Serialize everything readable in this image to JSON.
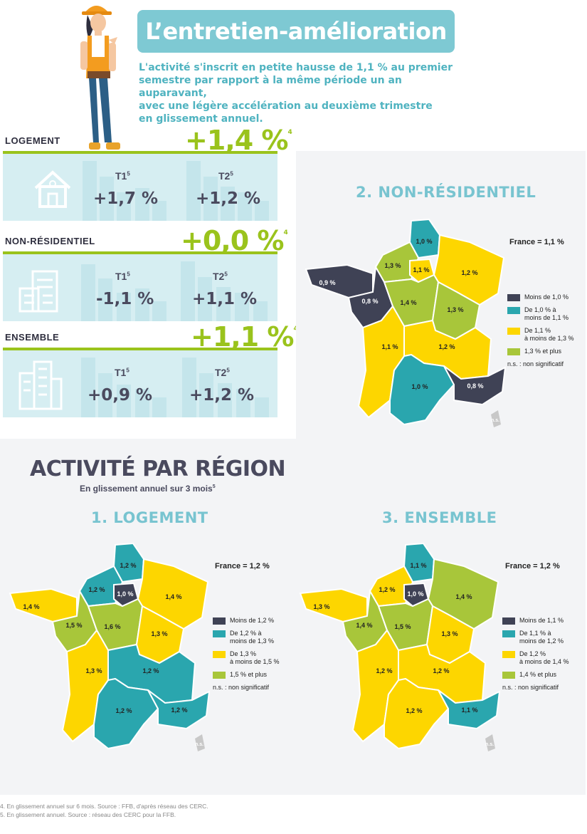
{
  "colors": {
    "teal": "#7ec9d3",
    "green": "#9ac31c",
    "dark": "#3f4255",
    "turquoise": "#2aa6ae",
    "yellow": "#fdd600",
    "lightgreen": "#a8c63a"
  },
  "header": {
    "title": "L’entretien-amélioration",
    "intro": [
      "L'activité s'inscrit en petite hausse de 1,1 % au premier",
      "semestre par rapport à la même période un an auparavant,",
      "avec une légère accélération au deuxième trimestre",
      "en glissement annuel."
    ]
  },
  "kpis": [
    {
      "label": "LOGEMENT",
      "value": "+1,4 %",
      "note": "4",
      "t1_label": "T1",
      "t1_note": "5",
      "t1": "+1,7 %",
      "t2_label": "T2",
      "t2_note": "5",
      "t2": "+1,2 %",
      "icon": "house-icon"
    },
    {
      "label": "NON-RÉSIDENTIEL",
      "value": "+0,0 %",
      "note": "4",
      "t1_label": "T1",
      "t1_note": "5",
      "t1": "-1,1 %",
      "t2_label": "T2",
      "t2_note": "5",
      "t2": "+1,1 %",
      "icon": "office-building-icon"
    },
    {
      "label": "ENSEMBLE",
      "value": "+1,1 %",
      "note": "4",
      "t1_label": "T1",
      "t1_note": "5",
      "t1": "+0,9 %",
      "t2_label": "T2",
      "t2_note": "5",
      "t2": "+1,2 %",
      "icon": "city-buildings-icon"
    }
  ],
  "section": {
    "title": "ACTIVITÉ PAR RÉGION",
    "subtitle": "En glissement annuel sur 3 mois",
    "subtitle_note": "5"
  },
  "maps": {
    "nonres": {
      "title": "2. NON-RÉSIDENTIEL",
      "france": "France = 1,1 %",
      "legend": [
        "Moins de 1,0 %",
        "De 1,0 % à|moins de 1,1 %",
        "De 1,1 %|à moins de 1,3 %",
        "1,3 % et plus"
      ],
      "ns": "n.s. : non significatif",
      "corsica": "n.s.",
      "regions": {
        "hdf": "1,0 %",
        "nor": "1,3 %",
        "idf": "1,1 %",
        "ge": "1,2 %",
        "bre": "0,9 %",
        "pdl": "0,8 %",
        "cvl": "1,4 %",
        "bfc": "1,3 %",
        "na": "1,1 %",
        "ara": "1,2 %",
        "occ": "1,0 %",
        "paca": "0,8 %"
      }
    },
    "logement": {
      "title": "1. LOGEMENT",
      "france": "France = 1,2 %",
      "legend": [
        "Moins de 1,2 %",
        "De 1,2 % à|moins de 1,3 %",
        "De 1,3 %|à moins de 1,5 %",
        "1,5 % et plus"
      ],
      "ns": "n.s. : non significatif",
      "corsica": "n.s.",
      "regions": {
        "hdf": "1,2 %",
        "nor": "1,2 %",
        "idf": "1,0 %",
        "ge": "1,4 %",
        "bre": "1,4 %",
        "pdl": "1,5 %",
        "cvl": "1,6 %",
        "bfc": "1,3 %",
        "na": "1,3 %",
        "ara": "1,2 %",
        "occ": "1,2 %",
        "paca": "1,2 %"
      }
    },
    "ensemble": {
      "title": "3. ENSEMBLE",
      "france": "France = 1,2 %",
      "legend": [
        "Moins de 1,1 %",
        "De 1,1 % à|moins de 1,2 %",
        "De 1,2 %|à moins de 1,4 %",
        "1,4 % et plus"
      ],
      "ns": "n.s. : non significatif",
      "corsica": "n.s.",
      "regions": {
        "hdf": "1,1 %",
        "nor": "1,2 %",
        "idf": "1,0 %",
        "ge": "1,4 %",
        "bre": "1,3 %",
        "pdl": "1,4 %",
        "cvl": "1,5 %",
        "bfc": "1,3 %",
        "na": "1,2 %",
        "ara": "1,2 %",
        "occ": "1,2 %",
        "paca": "1,1 %"
      }
    }
  },
  "footnotes": [
    "4. En glissement annuel sur 6 mois. Source : FFB, d'après réseau des CERC.",
    "5. En glissement annuel. Source : réseau des CERC pour la FFB."
  ]
}
